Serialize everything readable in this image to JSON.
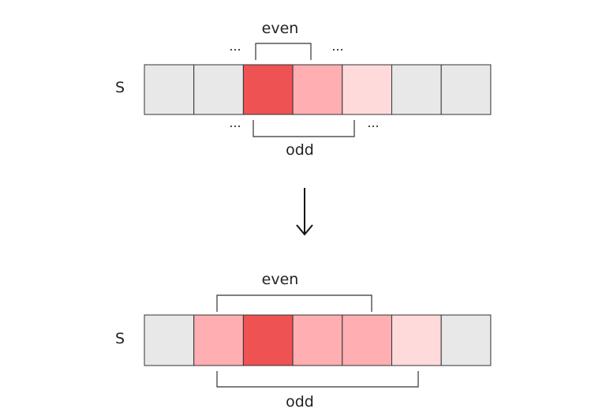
{
  "colors": {
    "gray": "#e8e8e8",
    "dark_red": "#ee5253",
    "mid_red": "#ffaeb1",
    "light_red": "#ffdadb",
    "stroke": "#333333"
  },
  "top": {
    "row_label": "S",
    "cells": [
      "gray",
      "gray",
      "dark_red",
      "mid_red",
      "light_red",
      "gray",
      "gray"
    ],
    "even_label": "even",
    "odd_label": "odd",
    "ellipsis": "..."
  },
  "arrow": {
    "icon": "down-arrow-icon"
  },
  "bottom": {
    "row_label": "S",
    "cells": [
      "gray",
      "mid_red",
      "dark_red",
      "mid_red",
      "mid_red",
      "light_red",
      "gray"
    ],
    "even_label": "even",
    "odd_label": "odd"
  }
}
